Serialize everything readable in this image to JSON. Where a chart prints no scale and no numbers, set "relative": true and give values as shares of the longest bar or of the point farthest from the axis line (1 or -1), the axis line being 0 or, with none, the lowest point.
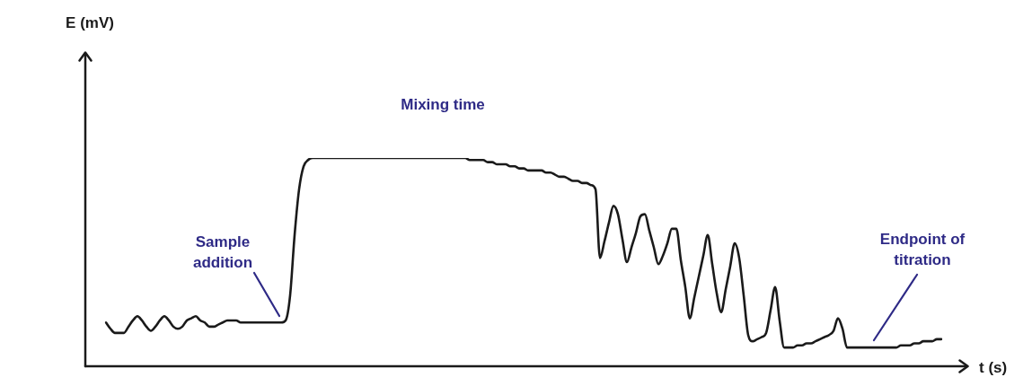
{
  "chart_data": {
    "type": "line",
    "xlabel": "t (s)",
    "relative": true,
    "annotations": [
      "Mixing time",
      "Sample addition",
      "Endpoint of titration",
      "E (mV)"
    ],
    "categories": [
      null,
      null,
      null,
      null,
      null,
      null,
      null,
      null,
      null,
      null,
      null,
      null,
      null,
      null,
      null,
      null,
      null,
      null,
      null,
      null,
      null,
      null,
      null,
      null,
      null,
      null,
      null,
      null,
      null,
      null,
      null,
      null,
      null,
      null,
      null,
      null,
      null,
      null,
      null,
      null,
      null,
      null,
      null,
      null,
      null,
      null,
      null,
      null,
      null,
      null,
      null,
      null,
      null,
      null,
      null,
      null,
      null,
      null,
      null,
      null,
      null,
      null,
      null,
      null,
      null,
      null,
      null,
      null,
      null,
      null,
      null,
      null,
      null,
      null,
      null,
      null,
      null,
      null,
      null,
      null,
      null,
      null,
      null,
      null,
      null,
      null,
      null,
      null,
      null,
      null,
      null,
      null,
      null,
      null,
      null,
      null,
      null,
      null,
      null,
      null,
      null,
      null,
      null,
      null,
      null,
      null,
      null,
      null,
      null,
      null,
      null,
      null,
      null,
      null,
      null,
      null,
      null,
      null,
      null,
      null,
      null,
      null,
      null,
      null,
      null,
      null,
      null,
      null,
      null,
      null,
      null,
      null,
      null,
      null,
      null,
      null,
      null,
      null,
      null,
      null,
      null,
      null,
      null,
      null,
      null,
      null,
      null,
      null,
      null,
      null,
      null,
      null,
      null,
      null,
      null,
      null,
      null,
      null,
      null,
      null,
      null,
      null,
      null,
      null,
      null,
      null,
      null,
      null,
      null,
      null,
      null,
      null,
      null,
      null,
      null,
      null,
      null,
      null,
      null,
      null,
      null,
      null,
      null,
      null,
      null,
      null,
      null
    ],
    "series": [
      {
        "color": "#1a1a1a",
        "values": [
          0.21,
          0.18,
          0.16,
          0.16,
          0.16,
          0.19,
          0.22,
          0.24,
          0.22,
          0.19,
          0.17,
          0.19,
          0.22,
          0.24,
          0.22,
          0.19,
          0.18,
          0.19,
          0.22,
          0.23,
          0.24,
          0.22,
          0.21,
          0.19,
          0.19,
          0.2,
          0.21,
          0.22,
          0.22,
          0.22,
          0.21,
          0.21,
          0.21,
          0.21,
          0.21,
          0.21,
          0.21,
          0.21,
          0.21,
          0.21,
          0.22,
          0.34,
          0.63,
          0.85,
          0.96,
          0.99,
          1,
          1,
          1,
          1,
          1,
          1,
          1,
          1,
          1,
          1,
          1,
          1,
          1,
          1,
          1,
          1,
          1,
          1,
          1,
          1,
          1,
          1,
          1,
          1,
          1,
          1,
          1,
          1,
          1,
          1,
          1,
          1,
          1,
          1,
          1,
          0.99,
          0.99,
          0.99,
          0.99,
          0.98,
          0.98,
          0.97,
          0.97,
          0.97,
          0.96,
          0.96,
          0.95,
          0.95,
          0.94,
          0.94,
          0.94,
          0.94,
          0.93,
          0.93,
          0.92,
          0.91,
          0.91,
          0.9,
          0.89,
          0.89,
          0.88,
          0.88,
          0.87,
          0.85,
          0.52,
          0.6,
          0.69,
          0.77,
          0.73,
          0.61,
          0.5,
          0.57,
          0.64,
          0.72,
          0.73,
          0.65,
          0.57,
          0.49,
          0.53,
          0.59,
          0.66,
          0.66,
          0.51,
          0.38,
          0.23,
          0.33,
          0.43,
          0.53,
          0.63,
          0.49,
          0.35,
          0.26,
          0.37,
          0.48,
          0.59,
          0.52,
          0.34,
          0.15,
          0.12,
          0.13,
          0.14,
          0.16,
          0.27,
          0.38,
          0.22,
          0.09,
          0.09,
          0.09,
          0.1,
          0.1,
          0.11,
          0.11,
          0.12,
          0.13,
          0.14,
          0.15,
          0.17,
          0.23,
          0.18,
          0.09,
          0.09,
          0.09,
          0.09,
          0.09,
          0.09,
          0.09,
          0.09,
          0.09,
          0.09,
          0.09,
          0.09,
          0.1,
          0.1,
          0.1,
          0.11,
          0.11,
          0.12,
          0.12,
          0.12,
          0.13,
          0.13
        ]
      }
    ]
  }
}
